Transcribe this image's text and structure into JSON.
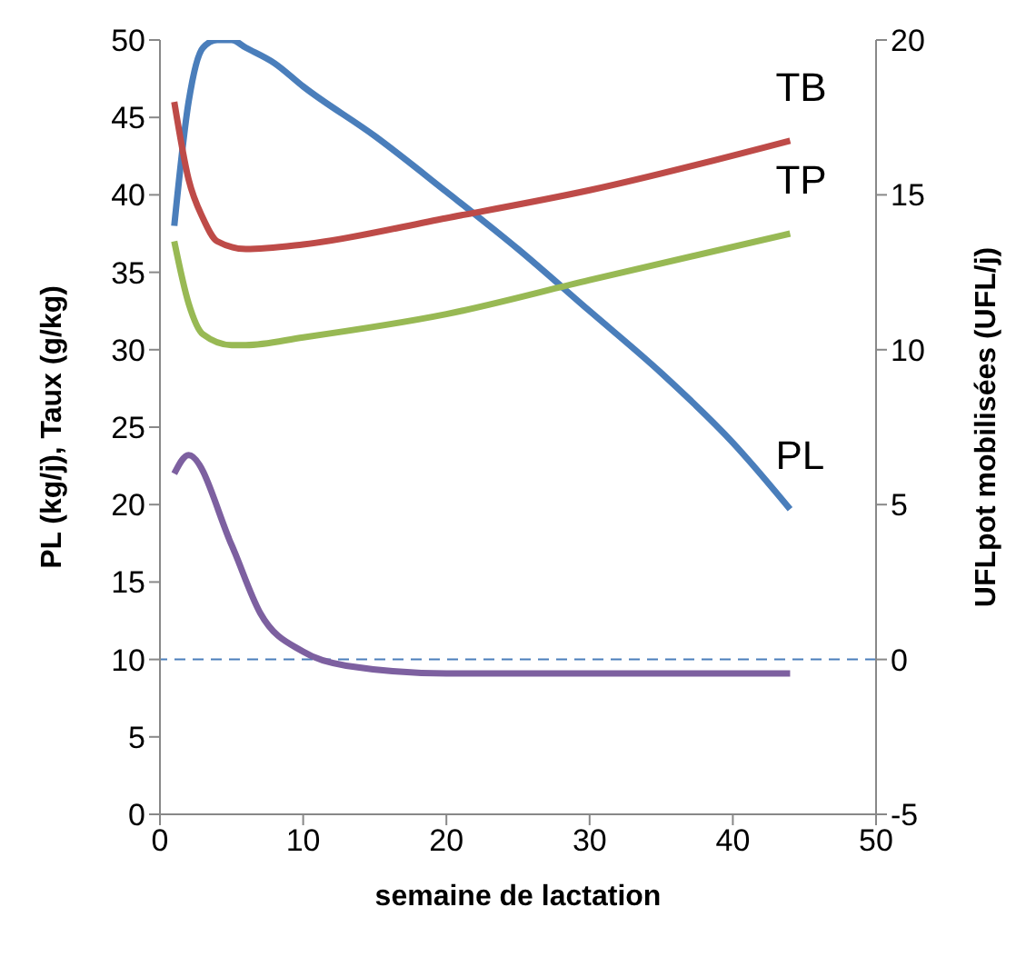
{
  "chart_data": {
    "type": "line",
    "xlabel": "semaine de lactation",
    "ylabel": "PL (kg/j), Taux (g/kg)",
    "y2label": "UFLpot mobilisées (UFL/j)",
    "xlim": [
      0,
      50
    ],
    "xticks": [
      0,
      10,
      20,
      30,
      40,
      50
    ],
    "ylim": [
      0,
      50
    ],
    "yticks": [
      0,
      5,
      10,
      15,
      20,
      25,
      30,
      35,
      40,
      45,
      50
    ],
    "y2lim": [
      -5,
      20
    ],
    "y2ticks": [
      -5,
      0,
      5,
      10,
      15,
      20
    ],
    "grid": false,
    "legend": false,
    "marker": "none",
    "line_style": "solid",
    "series": [
      {
        "name": "PL",
        "color": "#4a7ebb",
        "x": [
          1,
          2,
          3,
          4,
          5,
          6,
          8,
          10,
          15,
          20,
          25,
          30,
          35,
          40,
          44
        ],
        "values": [
          38,
          46,
          49.5,
          50,
          50,
          49.5,
          48.5,
          47,
          43.8,
          40.2,
          36.5,
          32.5,
          28.5,
          24,
          19.7
        ]
      },
      {
        "name": "TB",
        "color": "#be4b48",
        "x": [
          1,
          2,
          3,
          4,
          6,
          10,
          20,
          30,
          44
        ],
        "values": [
          46,
          41,
          38.5,
          37,
          36.5,
          36.8,
          38.5,
          40.3,
          43.5
        ]
      },
      {
        "name": "TP",
        "color": "#98b954",
        "x": [
          1,
          2,
          3,
          5,
          6,
          10,
          20,
          30,
          44
        ],
        "values": [
          37,
          33,
          31,
          30.3,
          30.3,
          30.8,
          32.3,
          34.5,
          37.5
        ]
      },
      {
        "color": "#7d60a0",
        "axis": "y2",
        "x": [
          1,
          2,
          5,
          7,
          10,
          13,
          20,
          30,
          44
        ],
        "values": [
          6,
          6.6,
          3.7,
          1.5,
          0.25,
          -0.2,
          -0.45,
          -0.45,
          -0.45
        ]
      }
    ],
    "ref_lines": [
      {
        "axis": "y2",
        "value": 0,
        "color": "#4a7ebb",
        "line_style": "dashed"
      }
    ]
  }
}
